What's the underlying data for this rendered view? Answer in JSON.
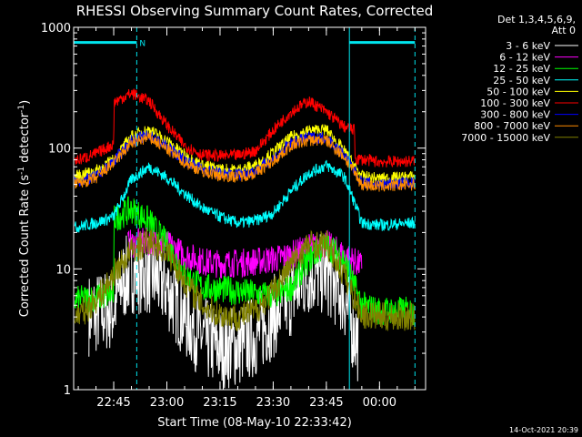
{
  "chart_data": {
    "type": "line",
    "title": "RHESSI Observing Summary Count Rates, Corrected",
    "xlabel": "Start Time (08-May-10 22:33:42)",
    "ylabel": "Corrected Count Rate (s⁻¹ detector⁻¹)",
    "ylabel_base": "Corrected Count Rate (s",
    "ylabel_exp1": "-1",
    "ylabel_mid": " detector",
    "ylabel_exp2": "-1",
    "ylabel_end": ")",
    "yscale": "log",
    "ylim": [
      1,
      1000
    ],
    "y_ticks": [
      {
        "value": 1,
        "label": "1"
      },
      {
        "value": 10,
        "label": "10"
      },
      {
        "value": 100,
        "label": "100"
      },
      {
        "value": 1000,
        "label": "1000"
      }
    ],
    "xlim": [
      "22:33:42",
      "00:13:00"
    ],
    "x_ticks": [
      "22:45",
      "23:00",
      "23:15",
      "23:30",
      "23:45",
      "00:00"
    ],
    "legend_header": [
      "Det 1,3,4,5,6,9,",
      "Att 0"
    ],
    "legend_placement": "right",
    "grid": false,
    "colors": {
      "marker": "#00e5ee",
      "background": "#000000",
      "axes": "#ffffff"
    },
    "annotations": [
      {
        "text": "N",
        "x_start": "22:33:42",
        "x_end": "22:51:30",
        "y": 750,
        "color": "#00e5ee"
      },
      {
        "text": "",
        "x_start": "23:51:30",
        "x_end": "00:10:00",
        "y": 750,
        "color": "#00e5ee"
      }
    ],
    "vertical_markers": [
      {
        "x": "22:51:30",
        "style": "dashed",
        "color": "#00e5ee"
      },
      {
        "x": "23:51:30",
        "style": "solid",
        "color": "#00e5ee"
      },
      {
        "x": "00:10:00",
        "style": "dashed",
        "color": "#00e5ee"
      }
    ],
    "series": [
      {
        "name": "3 - 6 keV",
        "color": "#ffffff",
        "x": [
          "22:38",
          "22:45",
          "22:47",
          "22:50",
          "22:55",
          "23:00",
          "23:05",
          "23:10",
          "23:15",
          "23:20",
          "23:25",
          "23:30",
          "23:35",
          "23:40",
          "23:45",
          "23:50",
          "23:52",
          "23:54"
        ],
        "values": [
          4.2,
          4.6,
          7.5,
          9.5,
          9.2,
          7,
          4,
          2.7,
          2.2,
          2.3,
          2.8,
          4,
          6,
          9,
          9.2,
          6,
          3.5,
          2.5
        ]
      },
      {
        "name": "6 - 12 keV",
        "color": "#ff00ff",
        "x": [
          "22:49",
          "22:55",
          "23:00",
          "23:05",
          "23:10",
          "23:15",
          "23:20",
          "23:25",
          "23:30",
          "23:35",
          "23:40",
          "23:45",
          "23:50",
          "23:55"
        ],
        "values": [
          16,
          17,
          16,
          13,
          11.5,
          11,
          11.2,
          11.5,
          12,
          13,
          15,
          16,
          13,
          10.5
        ]
      },
      {
        "name": "12 - 25 keV",
        "color": "#00ff00",
        "x": [
          "22:34",
          "22:40",
          "22:45",
          "22:45.1",
          "22:50",
          "22:55",
          "23:00",
          "23:05",
          "23:10",
          "23:15",
          "23:20",
          "23:25",
          "23:30",
          "23:35",
          "23:40",
          "23:45",
          "23:50",
          "23:55",
          "00:00",
          "00:10"
        ],
        "values": [
          5.5,
          5.8,
          6.2,
          26,
          31,
          25,
          16,
          9,
          7,
          6.8,
          6.5,
          6.2,
          6,
          7,
          12,
          16,
          12,
          5,
          4.5,
          4.5
        ]
      },
      {
        "name": "25 - 50 keV",
        "color": "#00ffff",
        "x": [
          "22:34",
          "22:40",
          "22:45",
          "22:50",
          "22:55",
          "23:00",
          "23:05",
          "23:10",
          "23:15",
          "23:20",
          "23:25",
          "23:30",
          "23:35",
          "23:40",
          "23:45",
          "23:50",
          "23:52",
          "23:55",
          "00:00",
          "00:10"
        ],
        "values": [
          22,
          24,
          27,
          55,
          70,
          57,
          42,
          32,
          27,
          24,
          25,
          29,
          44,
          62,
          72,
          58,
          42,
          24,
          23,
          24
        ]
      },
      {
        "name": "50 - 100 keV",
        "color": "#ffff00",
        "x": [
          "22:34",
          "22:40",
          "22:45",
          "22:50",
          "22:55",
          "23:00",
          "23:05",
          "23:10",
          "23:15",
          "23:20",
          "23:25",
          "23:30",
          "23:35",
          "23:40",
          "23:45",
          "23:50",
          "23:55",
          "00:00",
          "00:10"
        ],
        "values": [
          58,
          65,
          80,
          125,
          142,
          115,
          88,
          72,
          67,
          66,
          72,
          92,
          123,
          140,
          142,
          95,
          58,
          56,
          58
        ]
      },
      {
        "name": "100 - 300 keV",
        "color": "#ff0000",
        "x": [
          "22:34",
          "22:40",
          "22:45",
          "22:45.1",
          "22:50",
          "22:55",
          "23:00",
          "23:05",
          "23:10",
          "23:15",
          "23:20",
          "23:25",
          "23:30",
          "23:35",
          "23:40",
          "23:45",
          "23:50",
          "23:53",
          "23:53.1",
          "00:00",
          "00:10"
        ],
        "values": [
          78,
          90,
          108,
          240,
          285,
          245,
          155,
          105,
          88,
          86,
          87,
          95,
          140,
          200,
          245,
          200,
          150,
          140,
          82,
          77,
          78
        ]
      },
      {
        "name": "300 - 800 keV",
        "color": "#0000ff",
        "x": [
          "22:34",
          "22:40",
          "22:45",
          "22:50",
          "22:55",
          "23:00",
          "23:05",
          "23:10",
          "23:15",
          "23:20",
          "23:25",
          "23:30",
          "23:35",
          "23:40",
          "23:45",
          "23:50",
          "23:55",
          "00:00",
          "00:10"
        ],
        "values": [
          52,
          58,
          78,
          115,
          128,
          103,
          80,
          67,
          62,
          61,
          65,
          82,
          110,
          122,
          122,
          88,
          52,
          50,
          52
        ]
      },
      {
        "name": "800 - 7000 keV",
        "color": "#ff8c00",
        "x": [
          "22:34",
          "22:40",
          "22:45",
          "22:50",
          "22:55",
          "23:00",
          "23:05",
          "23:10",
          "23:15",
          "23:20",
          "23:25",
          "23:30",
          "23:35",
          "23:40",
          "23:45",
          "23:50",
          "23:55",
          "00:00",
          "00:10"
        ],
        "values": [
          50,
          56,
          75,
          110,
          122,
          98,
          76,
          64,
          59,
          58,
          62,
          78,
          105,
          116,
          116,
          85,
          50,
          48,
          50
        ]
      },
      {
        "name": "7000 - 15000 keV",
        "color": "#808000",
        "x": [
          "22:34",
          "22:38",
          "22:42",
          "22:46",
          "22:50",
          "22:55",
          "23:00",
          "23:05",
          "23:10",
          "23:15",
          "23:20",
          "23:25",
          "23:30",
          "23:35",
          "23:40",
          "23:45",
          "23:50",
          "23:55",
          "00:00",
          "00:10"
        ],
        "values": [
          4,
          4.8,
          6.5,
          10,
          14,
          17,
          14,
          8,
          5,
          4.2,
          4,
          4.5,
          6.5,
          11,
          16,
          16,
          9,
          4.2,
          4,
          4
        ]
      }
    ]
  },
  "footer": {
    "timestamp": "14-Oct-2021 20:39"
  }
}
